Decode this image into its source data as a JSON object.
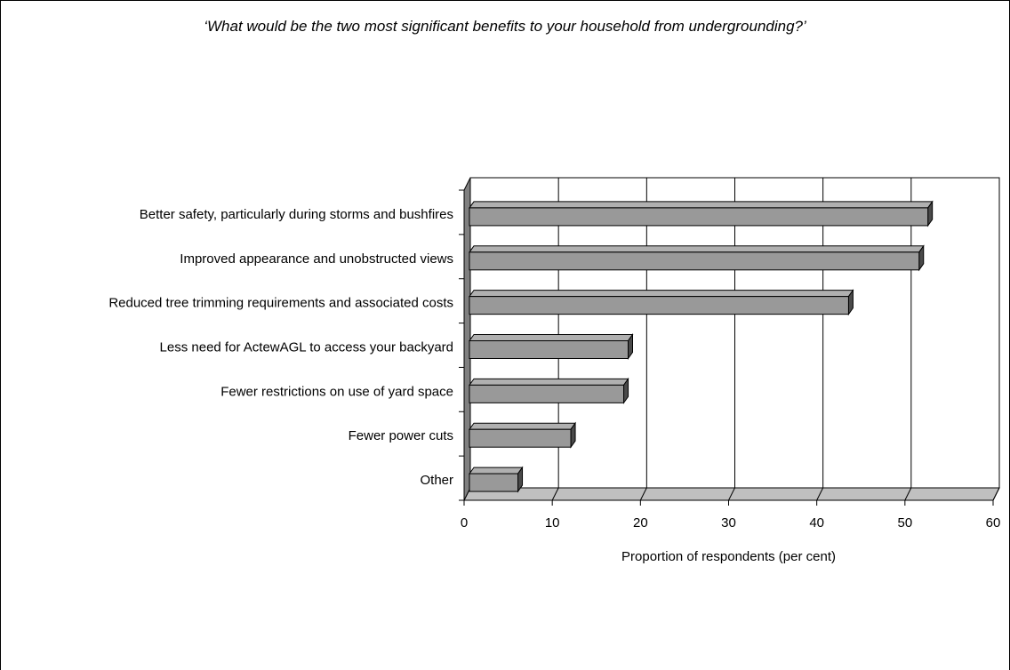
{
  "chart_data": {
    "type": "bar",
    "orientation": "horizontal",
    "title": "‘What would be the two most significant benefits to your household from undergrounding?’",
    "xlabel": "Proportion of respondents (per cent)",
    "ylabel": "",
    "xlim": [
      0,
      60
    ],
    "xticks": [
      0,
      10,
      20,
      30,
      40,
      50,
      60
    ],
    "grid": true,
    "legend": "none",
    "categories": [
      "Better safety, particularly during storms and bushfires",
      "Improved appearance and unobstructed views",
      "Reduced tree trimming requirements and associated costs",
      "Less need for ActewAGL to access your backyard",
      "Fewer restrictions on use of yard space",
      "Fewer power cuts",
      "Other"
    ],
    "values": [
      52,
      51,
      43,
      18,
      17.5,
      11.5,
      5.5
    ],
    "colors": {
      "bar_front": "#999999",
      "bar_top": "#b0b0b0",
      "bar_side": "#4a4a4a",
      "wall": "#808080",
      "floor": "#c0c0c0"
    }
  }
}
